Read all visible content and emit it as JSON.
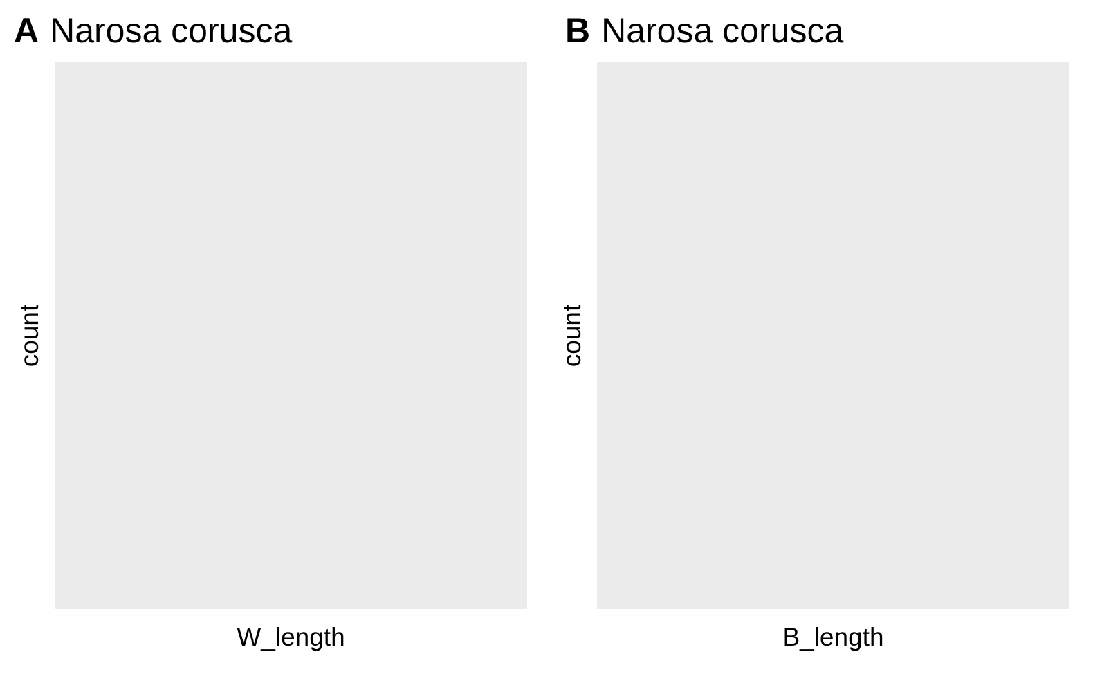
{
  "chart_data": [
    {
      "type": "bar",
      "tag": "A",
      "title": "Narosa corusca",
      "xlabel": "W_length",
      "ylabel": "count",
      "categories": [],
      "values": [],
      "grid": false,
      "legend": "none",
      "panel_background": "#ebebeb"
    },
    {
      "type": "bar",
      "tag": "B",
      "title": "Narosa corusca",
      "xlabel": "B_length",
      "ylabel": "count",
      "categories": [],
      "values": [],
      "grid": false,
      "legend": "none",
      "panel_background": "#ebebeb"
    }
  ]
}
